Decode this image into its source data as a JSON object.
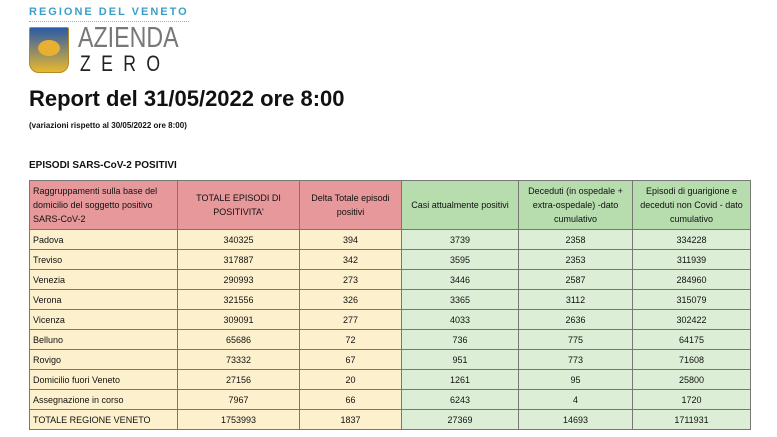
{
  "logo": {
    "region": "REGIONE DEL VENETO",
    "line1": "AZIENDA",
    "line2": "ZERO"
  },
  "title": "Report del 31/05/2022 ore 8:00",
  "subtitle": "(variazioni rispetto al 30/05/2022 ore 8:00)",
  "section": "EPISODI SARS-CoV-2 POSITIVI",
  "colors": {
    "header_red": "#e6989a",
    "body_cream": "#fdf0cc",
    "header_green": "#b7dcae",
    "body_green": "#dcefd6"
  },
  "table": {
    "headers": [
      "Raggruppamenti sulla base del domicilio del soggetto positivo SARS-CoV-2",
      "TOTALE EPISODI DI POSITIVITA'",
      "Delta Totale episodi positivi",
      "Casi attualmente positivi",
      "Deceduti (in ospedale + extra-ospedale) -dato cumulativo",
      "Episodi di guarigione e deceduti non Covid - dato cumulativo"
    ],
    "rows": [
      [
        "Padova",
        "340325",
        "394",
        "3739",
        "2358",
        "334228"
      ],
      [
        "Treviso",
        "317887",
        "342",
        "3595",
        "2353",
        "311939"
      ],
      [
        "Venezia",
        "290993",
        "273",
        "3446",
        "2587",
        "284960"
      ],
      [
        "Verona",
        "321556",
        "326",
        "3365",
        "3112",
        "315079"
      ],
      [
        "Vicenza",
        "309091",
        "277",
        "4033",
        "2636",
        "302422"
      ],
      [
        "Belluno",
        "65686",
        "72",
        "736",
        "775",
        "64175"
      ],
      [
        "Rovigo",
        "73332",
        "67",
        "951",
        "773",
        "71608"
      ],
      [
        "Domicilio fuori Veneto",
        "27156",
        "20",
        "1261",
        "95",
        "25800"
      ],
      [
        "Assegnazione in corso",
        "7967",
        "66",
        "6243",
        "4",
        "1720"
      ],
      [
        "TOTALE REGIONE VENETO",
        "1753993",
        "1837",
        "27369",
        "14693",
        "1711931"
      ]
    ]
  }
}
